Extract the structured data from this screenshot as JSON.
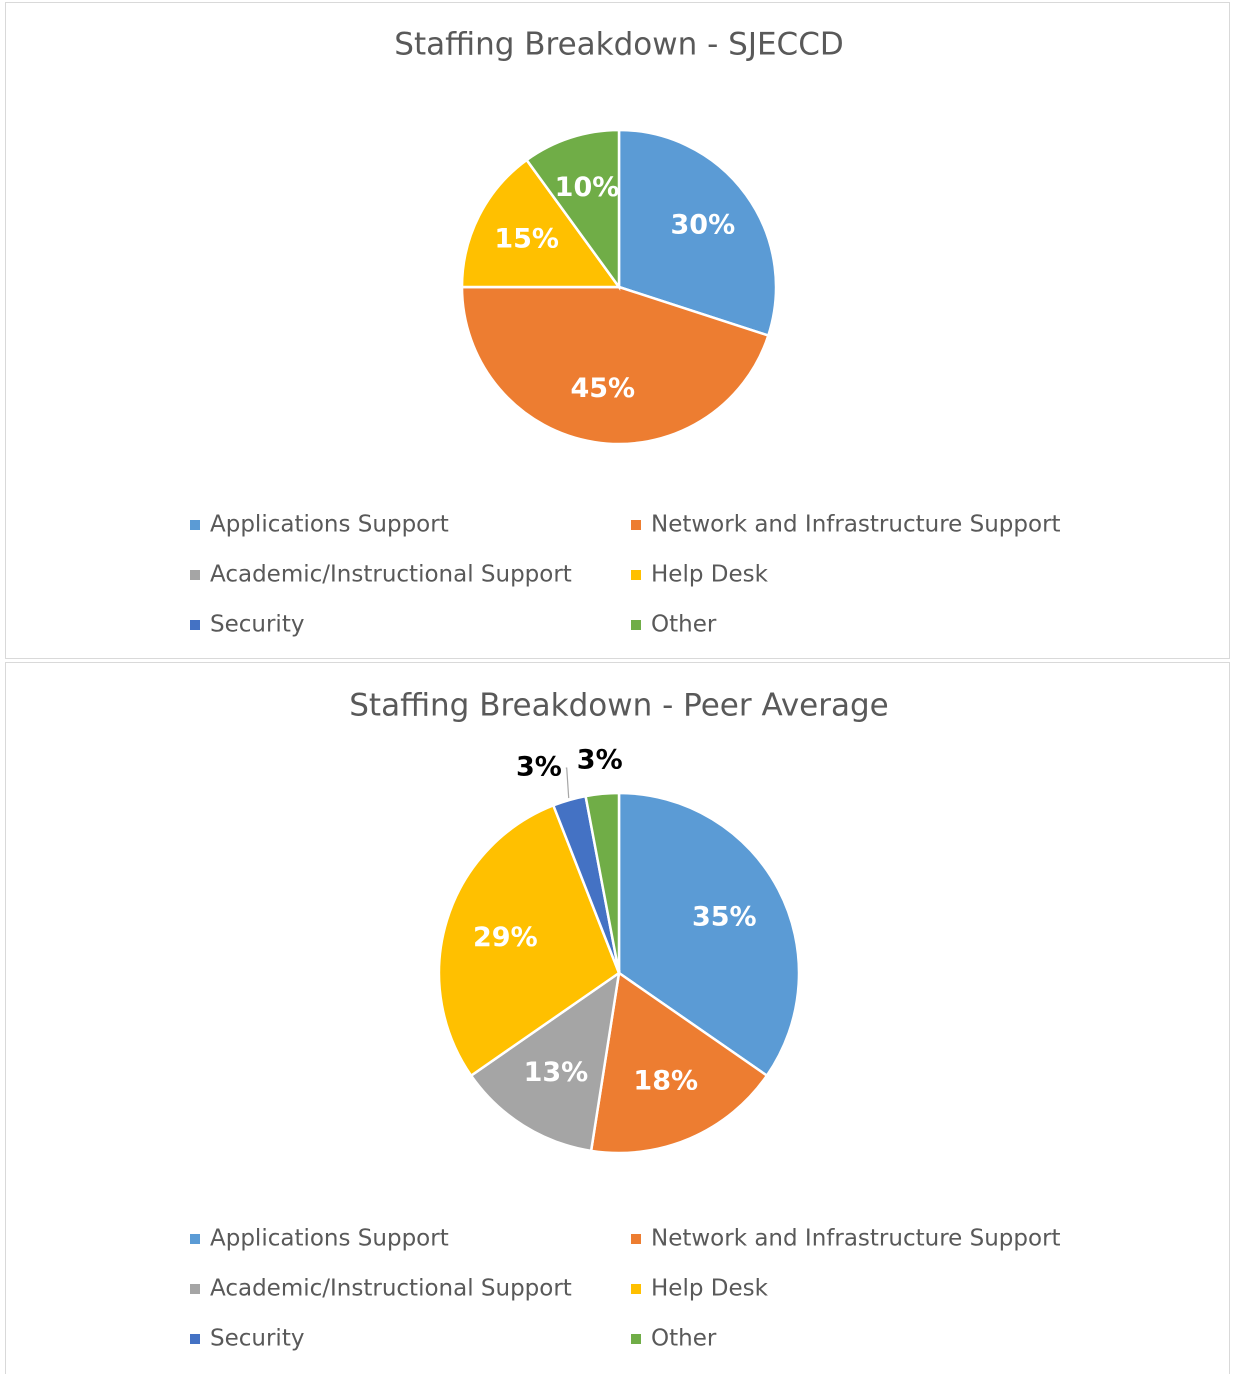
{
  "chart_data": [
    {
      "type": "pie",
      "title": "Staffing Breakdown - SJECCD",
      "categories": [
        "Applications Support",
        "Network and Infrastructure Support",
        "Academic/Instructional Support",
        "Help Desk",
        "Security",
        "Other"
      ],
      "values": [
        30,
        45,
        0,
        15,
        0,
        10
      ],
      "value_labels": [
        "30%",
        "45%",
        null,
        "15%",
        null,
        "10%"
      ],
      "colors": [
        "#5b9bd5",
        "#ed7d31",
        "#a5a5a5",
        "#ffc000",
        "#4472c4",
        "#70ad47"
      ]
    },
    {
      "type": "pie",
      "title": "Staffing Breakdown - Peer Average",
      "categories": [
        "Applications Support",
        "Network and Infrastructure Support",
        "Academic/Instructional Support",
        "Help Desk",
        "Security",
        "Other"
      ],
      "values": [
        35,
        18,
        13,
        29,
        3,
        3
      ],
      "value_labels": [
        "35%",
        "18%",
        "13%",
        "29%",
        "3%",
        "3%"
      ],
      "colors": [
        "#5b9bd5",
        "#ed7d31",
        "#a5a5a5",
        "#ffc000",
        "#4472c4",
        "#70ad47"
      ]
    }
  ]
}
